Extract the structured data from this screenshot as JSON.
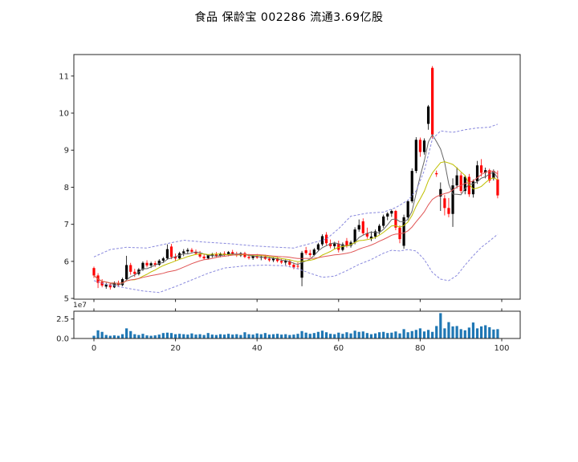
{
  "title": "食品 保龄宝 002286 流通3.69亿股",
  "colors": {
    "up_candle": "#000000",
    "down_candle": "#ff0000",
    "ma5_line": "#666666",
    "ma10_line": "#bfbf00",
    "ma20_line": "#e05555",
    "bollinger_band": "#8888dd",
    "volume_bar": "#1f77b4",
    "axis": "#262626",
    "background": "#ffffff"
  },
  "chart_data": [
    {
      "type": "candlestick",
      "panel": "price",
      "x_range": [
        0,
        100
      ],
      "ylim": [
        4.98,
        11.58
      ],
      "yticks": [
        5,
        6,
        7,
        8,
        9,
        10,
        11
      ],
      "ytick_labels": [
        "5",
        "6",
        "7",
        "8",
        "9",
        "10",
        "11"
      ],
      "xticks": [
        0,
        20,
        40,
        60,
        80,
        100
      ],
      "xtick_labels": [
        "0",
        "20",
        "40",
        "60",
        "80",
        "100"
      ],
      "grid": false,
      "legend": "none",
      "up_color": "#000000",
      "down_color": "#ff0000",
      "ohlc": [
        [
          5.82,
          5.86,
          5.55,
          5.62
        ],
        [
          5.62,
          5.68,
          5.28,
          5.42
        ],
        [
          5.45,
          5.52,
          5.3,
          5.35
        ],
        [
          5.32,
          5.42,
          5.26,
          5.38
        ],
        [
          5.38,
          5.42,
          5.24,
          5.3
        ],
        [
          5.3,
          5.46,
          5.28,
          5.42
        ],
        [
          5.42,
          5.48,
          5.32,
          5.36
        ],
        [
          5.36,
          5.56,
          5.33,
          5.52
        ],
        [
          5.52,
          6.15,
          5.5,
          5.9
        ],
        [
          5.9,
          5.96,
          5.64,
          5.72
        ],
        [
          5.72,
          5.8,
          5.58,
          5.66
        ],
        [
          5.66,
          5.82,
          5.62,
          5.78
        ],
        [
          5.78,
          6.0,
          5.74,
          5.96
        ],
        [
          5.96,
          6.03,
          5.84,
          5.89
        ],
        [
          5.89,
          5.99,
          5.82,
          5.95
        ],
        [
          5.95,
          6.01,
          5.85,
          5.91
        ],
        [
          5.91,
          6.06,
          5.88,
          6.02
        ],
        [
          6.02,
          6.12,
          5.96,
          6.08
        ],
        [
          6.08,
          6.46,
          6.04,
          6.33
        ],
        [
          6.4,
          6.47,
          6.06,
          6.12
        ],
        [
          6.12,
          6.21,
          6.02,
          6.08
        ],
        [
          6.08,
          6.26,
          6.05,
          6.22
        ],
        [
          6.22,
          6.33,
          6.14,
          6.27
        ],
        [
          6.27,
          6.36,
          6.2,
          6.31
        ],
        [
          6.31,
          6.36,
          6.22,
          6.26
        ],
        [
          6.26,
          6.32,
          6.17,
          6.21
        ],
        [
          6.21,
          6.28,
          6.09,
          6.13
        ],
        [
          6.13,
          6.2,
          6.04,
          6.08
        ],
        [
          6.08,
          6.19,
          6.05,
          6.16
        ],
        [
          6.16,
          6.23,
          6.1,
          6.19
        ],
        [
          6.19,
          6.25,
          6.11,
          6.15
        ],
        [
          6.15,
          6.24,
          6.11,
          6.21
        ],
        [
          6.21,
          6.27,
          6.13,
          6.17
        ],
        [
          6.17,
          6.28,
          6.14,
          6.25
        ],
        [
          6.25,
          6.31,
          6.16,
          6.2
        ],
        [
          6.2,
          6.26,
          6.12,
          6.16
        ],
        [
          6.16,
          6.25,
          6.12,
          6.22
        ],
        [
          6.22,
          6.26,
          6.09,
          6.12
        ],
        [
          6.12,
          6.2,
          6.05,
          6.09
        ],
        [
          6.09,
          6.18,
          6.04,
          6.14
        ],
        [
          6.14,
          6.2,
          6.07,
          6.1
        ],
        [
          6.1,
          6.17,
          6.03,
          6.13
        ],
        [
          6.13,
          6.18,
          6.04,
          6.07
        ],
        [
          6.07,
          6.13,
          5.99,
          6.03
        ],
        [
          6.03,
          6.12,
          5.98,
          6.08
        ],
        [
          6.08,
          6.12,
          5.97,
          6.01
        ],
        [
          6.01,
          6.08,
          5.93,
          5.97
        ],
        [
          5.97,
          6.05,
          5.9,
          6.01
        ],
        [
          6.01,
          6.05,
          5.87,
          5.91
        ],
        [
          5.91,
          5.97,
          5.79,
          5.84
        ],
        [
          5.88,
          5.97,
          5.8,
          5.86
        ],
        [
          5.56,
          6.28,
          5.33,
          6.23
        ],
        [
          6.3,
          6.39,
          6.17,
          6.22
        ],
        [
          6.22,
          6.31,
          6.11,
          6.17
        ],
        [
          6.17,
          6.36,
          6.14,
          6.32
        ],
        [
          6.32,
          6.5,
          6.27,
          6.46
        ],
        [
          6.46,
          6.73,
          6.41,
          6.68
        ],
        [
          6.72,
          6.79,
          6.43,
          6.49
        ],
        [
          6.49,
          6.59,
          6.35,
          6.41
        ],
        [
          6.41,
          6.53,
          6.33,
          6.48
        ],
        [
          6.48,
          6.56,
          6.24,
          6.31
        ],
        [
          6.31,
          6.51,
          6.27,
          6.46
        ],
        [
          6.55,
          6.63,
          6.37,
          6.42
        ],
        [
          6.42,
          6.56,
          6.37,
          6.51
        ],
        [
          6.51,
          6.92,
          6.46,
          6.86
        ],
        [
          6.86,
          7.13,
          6.8,
          6.98
        ],
        [
          7.08,
          7.16,
          6.71,
          6.76
        ],
        [
          6.76,
          6.91,
          6.61,
          6.67
        ],
        [
          6.62,
          6.81,
          6.55,
          6.67
        ],
        [
          6.67,
          6.86,
          6.61,
          6.81
        ],
        [
          6.81,
          7.01,
          6.73,
          6.96
        ],
        [
          6.96,
          7.26,
          6.9,
          7.21
        ],
        [
          7.21,
          7.33,
          7.11,
          7.29
        ],
        [
          7.29,
          7.4,
          7.2,
          7.36
        ],
        [
          7.36,
          7.39,
          6.84,
          6.91
        ],
        [
          6.91,
          6.97,
          6.49,
          6.6
        ],
        [
          6.42,
          7.26,
          6.34,
          7.19
        ],
        [
          7.19,
          7.66,
          7.11,
          7.62
        ],
        [
          7.62,
          8.51,
          7.57,
          8.44
        ],
        [
          8.44,
          9.35,
          8.38,
          9.28
        ],
        [
          9.28,
          9.34,
          8.82,
          8.95
        ],
        [
          8.95,
          9.32,
          8.88,
          9.26
        ],
        [
          9.71,
          10.22,
          9.55,
          10.18
        ],
        [
          11.22,
          11.27,
          9.32,
          9.42
        ],
        [
          8.38,
          8.45,
          8.28,
          8.35
        ],
        [
          7.75,
          8.13,
          7.36,
          7.95
        ],
        [
          7.7,
          7.79,
          7.24,
          7.44
        ],
        [
          7.44,
          7.71,
          7.19,
          7.28
        ],
        [
          7.28,
          8.24,
          6.93,
          8.05
        ],
        [
          8.05,
          8.54,
          7.97,
          8.32
        ],
        [
          8.32,
          8.39,
          7.84,
          7.9
        ],
        [
          7.9,
          8.33,
          7.81,
          8.28
        ],
        [
          8.28,
          8.36,
          7.74,
          7.81
        ],
        [
          7.81,
          8.21,
          7.72,
          8.16
        ],
        [
          8.16,
          8.71,
          8.09,
          8.59
        ],
        [
          8.59,
          8.76,
          8.29,
          8.39
        ],
        [
          8.39,
          8.53,
          8.24,
          8.46
        ],
        [
          8.46,
          8.5,
          8.12,
          8.18
        ],
        [
          8.25,
          8.48,
          8.18,
          8.44
        ],
        [
          8.21,
          8.45,
          7.7,
          7.78
        ]
      ],
      "overlays": [
        {
          "name": "ma-5-line",
          "type": "sma",
          "window": 5,
          "color": "#666666",
          "dash": "none"
        },
        {
          "name": "ma-10-line",
          "type": "sma",
          "window": 10,
          "color": "#bfbf00",
          "dash": "none"
        },
        {
          "name": "ma-20-line",
          "type": "sma",
          "window": 20,
          "color": "#e05555",
          "dash": "none"
        },
        {
          "name": "bollinger-upper-band",
          "type": "keypoints",
          "color": "#8888dd",
          "dash": "3,2",
          "points": [
            [
              0,
              6.12
            ],
            [
              4,
              6.32
            ],
            [
              8,
              6.38
            ],
            [
              13,
              6.36
            ],
            [
              18,
              6.48
            ],
            [
              22,
              6.57
            ],
            [
              27,
              6.52
            ],
            [
              33,
              6.48
            ],
            [
              39,
              6.42
            ],
            [
              45,
              6.38
            ],
            [
              49,
              6.36
            ],
            [
              53,
              6.48
            ],
            [
              57,
              6.6
            ],
            [
              60,
              6.88
            ],
            [
              63,
              7.22
            ],
            [
              67,
              7.3
            ],
            [
              71,
              7.33
            ],
            [
              74,
              7.45
            ],
            [
              77,
              7.65
            ],
            [
              79,
              7.9
            ],
            [
              81,
              8.45
            ],
            [
              83,
              9.3
            ],
            [
              85,
              9.52
            ],
            [
              88,
              9.48
            ],
            [
              91,
              9.55
            ],
            [
              94,
              9.6
            ],
            [
              97,
              9.62
            ],
            [
              99,
              9.7
            ]
          ]
        },
        {
          "name": "bollinger-lower-band",
          "type": "keypoints",
          "color": "#8888dd",
          "dash": "3,2",
          "points": [
            [
              0,
              5.48
            ],
            [
              3,
              5.38
            ],
            [
              7,
              5.3
            ],
            [
              12,
              5.2
            ],
            [
              16,
              5.16
            ],
            [
              20,
              5.32
            ],
            [
              24,
              5.5
            ],
            [
              28,
              5.68
            ],
            [
              32,
              5.82
            ],
            [
              37,
              5.88
            ],
            [
              42,
              5.9
            ],
            [
              47,
              5.88
            ],
            [
              50,
              5.8
            ],
            [
              53,
              5.68
            ],
            [
              56,
              5.57
            ],
            [
              59,
              5.6
            ],
            [
              62,
              5.75
            ],
            [
              65,
              5.92
            ],
            [
              68,
              6.05
            ],
            [
              71,
              6.22
            ],
            [
              73,
              6.3
            ],
            [
              75,
              6.28
            ],
            [
              77,
              6.32
            ],
            [
              79,
              6.28
            ],
            [
              81,
              6.05
            ],
            [
              83,
              5.7
            ],
            [
              85,
              5.52
            ],
            [
              87,
              5.48
            ],
            [
              89,
              5.62
            ],
            [
              91,
              5.9
            ],
            [
              93,
              6.15
            ],
            [
              95,
              6.38
            ],
            [
              97,
              6.55
            ],
            [
              99,
              6.73
            ]
          ]
        }
      ]
    },
    {
      "type": "bar",
      "panel": "volume",
      "unit_multiplier_label": "1e7",
      "ylim": [
        0,
        3.5
      ],
      "yticks": [
        0,
        2.5
      ],
      "ytick_labels": [
        "0.0",
        "2.5"
      ],
      "xticks": [
        0,
        20,
        40,
        60,
        80,
        100
      ],
      "xtick_labels": [
        "0",
        "20",
        "40",
        "60",
        "80",
        "100"
      ],
      "bar_color": "#1f77b4",
      "values": [
        0.35,
        1.05,
        0.85,
        0.45,
        0.35,
        0.4,
        0.35,
        0.55,
        1.3,
        0.95,
        0.55,
        0.45,
        0.6,
        0.4,
        0.35,
        0.4,
        0.5,
        0.7,
        0.75,
        0.7,
        0.55,
        0.6,
        0.55,
        0.5,
        0.65,
        0.5,
        0.55,
        0.45,
        0.7,
        0.5,
        0.45,
        0.55,
        0.5,
        0.6,
        0.5,
        0.55,
        0.45,
        0.8,
        0.55,
        0.5,
        0.65,
        0.55,
        0.7,
        0.5,
        0.55,
        0.6,
        0.5,
        0.55,
        0.45,
        0.5,
        0.6,
        0.95,
        0.75,
        0.6,
        0.7,
        0.85,
        1.0,
        0.8,
        0.6,
        0.55,
        0.75,
        0.6,
        0.8,
        0.65,
        1.0,
        0.85,
        0.9,
        0.7,
        0.55,
        0.65,
        0.8,
        0.85,
        0.7,
        0.75,
        0.9,
        0.65,
        1.2,
        0.8,
        0.95,
        1.1,
        1.3,
        0.9,
        1.1,
        0.85,
        1.6,
        3.25,
        1.3,
        2.1,
        1.55,
        1.6,
        1.2,
        1.05,
        1.4,
        2.05,
        1.3,
        1.55,
        1.7,
        1.45,
        1.15,
        1.2
      ]
    }
  ]
}
